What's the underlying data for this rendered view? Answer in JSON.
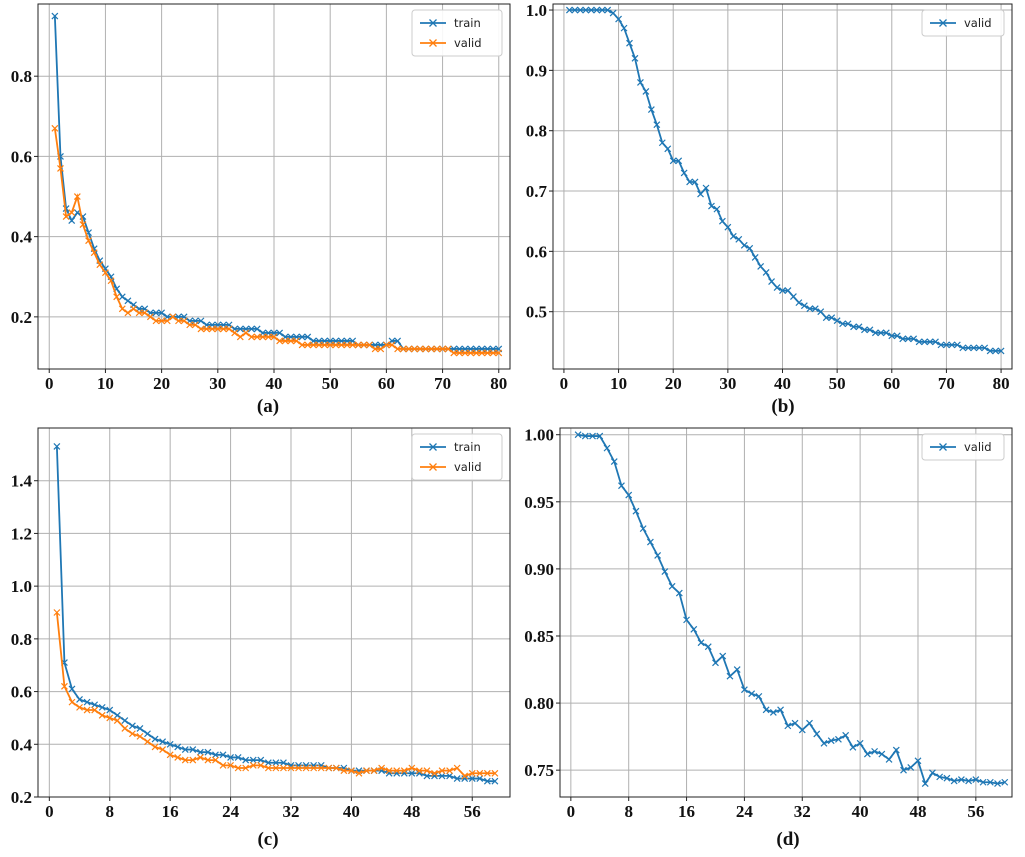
{
  "chart_data": [
    {
      "id": "a",
      "type": "line",
      "caption": "(a)",
      "xlim": [
        -2,
        82
      ],
      "ylim": [
        0.07,
        0.98
      ],
      "xticks": [
        0,
        10,
        20,
        30,
        40,
        50,
        60,
        70,
        80
      ],
      "yticks": [
        0.2,
        0.4,
        0.6,
        0.8
      ],
      "ytick_labels": [
        "0.2",
        "0.4",
        "0.6",
        "0.8"
      ],
      "grid": true,
      "legend": "top-right",
      "series": [
        {
          "name": "train",
          "color": "#1f77b4",
          "x_start": 1,
          "x_step": 1,
          "values": [
            0.95,
            0.6,
            0.47,
            0.44,
            0.46,
            0.45,
            0.41,
            0.37,
            0.34,
            0.32,
            0.3,
            0.27,
            0.25,
            0.24,
            0.23,
            0.22,
            0.22,
            0.21,
            0.21,
            0.21,
            0.2,
            0.2,
            0.2,
            0.2,
            0.19,
            0.19,
            0.19,
            0.18,
            0.18,
            0.18,
            0.18,
            0.18,
            0.17,
            0.17,
            0.17,
            0.17,
            0.17,
            0.16,
            0.16,
            0.16,
            0.16,
            0.15,
            0.15,
            0.15,
            0.15,
            0.15,
            0.14,
            0.14,
            0.14,
            0.14,
            0.14,
            0.14,
            0.14,
            0.14,
            0.13,
            0.13,
            0.13,
            0.13,
            0.13,
            0.13,
            0.14,
            0.14,
            0.12,
            0.12,
            0.12,
            0.12,
            0.12,
            0.12,
            0.12,
            0.12,
            0.12,
            0.12,
            0.12,
            0.12,
            0.12,
            0.12,
            0.12,
            0.12,
            0.12,
            0.12
          ]
        },
        {
          "name": "valid",
          "color": "#ff7f0e",
          "x_start": 1,
          "x_step": 1,
          "values": [
            0.67,
            0.57,
            0.45,
            0.46,
            0.5,
            0.43,
            0.39,
            0.36,
            0.33,
            0.31,
            0.29,
            0.25,
            0.22,
            0.21,
            0.22,
            0.21,
            0.21,
            0.2,
            0.19,
            0.19,
            0.19,
            0.2,
            0.19,
            0.19,
            0.18,
            0.18,
            0.17,
            0.17,
            0.17,
            0.17,
            0.17,
            0.17,
            0.16,
            0.15,
            0.16,
            0.15,
            0.15,
            0.15,
            0.15,
            0.15,
            0.14,
            0.14,
            0.14,
            0.14,
            0.13,
            0.13,
            0.13,
            0.13,
            0.13,
            0.13,
            0.13,
            0.13,
            0.13,
            0.13,
            0.13,
            0.13,
            0.13,
            0.12,
            0.12,
            0.13,
            0.13,
            0.12,
            0.12,
            0.12,
            0.12,
            0.12,
            0.12,
            0.12,
            0.12,
            0.12,
            0.12,
            0.11,
            0.11,
            0.11,
            0.11,
            0.11,
            0.11,
            0.11,
            0.11,
            0.11
          ]
        }
      ]
    },
    {
      "id": "b",
      "type": "line",
      "caption": "(b)",
      "xlim": [
        -2,
        82
      ],
      "ylim": [
        0.405,
        1.01
      ],
      "xticks": [
        0,
        10,
        20,
        30,
        40,
        50,
        60,
        70,
        80
      ],
      "yticks": [
        0.5,
        0.6,
        0.7,
        0.8,
        0.9,
        1.0
      ],
      "ytick_labels": [
        "0.5",
        "0.6",
        "0.7",
        "0.8",
        "0.9",
        "1.0"
      ],
      "grid": true,
      "legend": "top-right",
      "series": [
        {
          "name": "valid",
          "color": "#1f77b4",
          "x_start": 1,
          "x_step": 1,
          "values": [
            1.0,
            1.0,
            1.0,
            1.0,
            1.0,
            1.0,
            1.0,
            1.0,
            0.995,
            0.985,
            0.97,
            0.945,
            0.92,
            0.88,
            0.865,
            0.835,
            0.81,
            0.78,
            0.77,
            0.75,
            0.75,
            0.73,
            0.715,
            0.715,
            0.695,
            0.705,
            0.675,
            0.67,
            0.65,
            0.64,
            0.625,
            0.62,
            0.61,
            0.605,
            0.59,
            0.575,
            0.565,
            0.55,
            0.54,
            0.535,
            0.535,
            0.525,
            0.515,
            0.51,
            0.505,
            0.505,
            0.5,
            0.49,
            0.49,
            0.485,
            0.48,
            0.48,
            0.475,
            0.475,
            0.47,
            0.47,
            0.465,
            0.465,
            0.465,
            0.46,
            0.46,
            0.455,
            0.455,
            0.455,
            0.45,
            0.45,
            0.45,
            0.45,
            0.445,
            0.445,
            0.445,
            0.445,
            0.44,
            0.44,
            0.44,
            0.44,
            0.44,
            0.435,
            0.435,
            0.435
          ]
        }
      ]
    },
    {
      "id": "c",
      "type": "line",
      "caption": "(c)",
      "xlim": [
        -1.5,
        61
      ],
      "ylim": [
        0.2,
        1.6
      ],
      "xticks": [
        0,
        8,
        16,
        24,
        32,
        40,
        48,
        56
      ],
      "yticks": [
        0.2,
        0.4,
        0.6,
        0.8,
        1.0,
        1.2,
        1.4
      ],
      "ytick_labels": [
        "0.2",
        "0.4",
        "0.6",
        "0.8",
        "1.0",
        "1.2",
        "1.4"
      ],
      "grid": true,
      "legend": "top-right",
      "series": [
        {
          "name": "train",
          "color": "#1f77b4",
          "x_start": 1,
          "x_step": 1,
          "values": [
            1.53,
            0.71,
            0.61,
            0.57,
            0.56,
            0.55,
            0.54,
            0.53,
            0.51,
            0.49,
            0.47,
            0.46,
            0.44,
            0.42,
            0.41,
            0.4,
            0.39,
            0.38,
            0.38,
            0.37,
            0.37,
            0.36,
            0.36,
            0.35,
            0.35,
            0.34,
            0.34,
            0.34,
            0.33,
            0.33,
            0.33,
            0.32,
            0.32,
            0.32,
            0.32,
            0.32,
            0.31,
            0.31,
            0.31,
            0.3,
            0.3,
            0.3,
            0.3,
            0.3,
            0.29,
            0.29,
            0.29,
            0.29,
            0.29,
            0.28,
            0.28,
            0.28,
            0.28,
            0.27,
            0.27,
            0.27,
            0.27,
            0.26,
            0.26
          ]
        },
        {
          "name": "valid",
          "color": "#ff7f0e",
          "x_start": 1,
          "x_step": 1,
          "values": [
            0.9,
            0.62,
            0.56,
            0.54,
            0.53,
            0.53,
            0.51,
            0.5,
            0.49,
            0.46,
            0.44,
            0.43,
            0.41,
            0.39,
            0.38,
            0.36,
            0.35,
            0.34,
            0.34,
            0.35,
            0.34,
            0.34,
            0.32,
            0.32,
            0.31,
            0.31,
            0.32,
            0.32,
            0.31,
            0.31,
            0.31,
            0.31,
            0.31,
            0.31,
            0.31,
            0.31,
            0.31,
            0.31,
            0.3,
            0.3,
            0.29,
            0.3,
            0.3,
            0.31,
            0.3,
            0.3,
            0.3,
            0.31,
            0.3,
            0.3,
            0.29,
            0.3,
            0.3,
            0.31,
            0.28,
            0.29,
            0.29,
            0.29,
            0.29
          ]
        }
      ]
    },
    {
      "id": "d",
      "type": "line",
      "caption": "(d)",
      "xlim": [
        -1.5,
        61
      ],
      "ylim": [
        0.73,
        1.005
      ],
      "xticks": [
        0,
        8,
        16,
        24,
        32,
        40,
        48,
        56
      ],
      "yticks": [
        0.75,
        0.8,
        0.85,
        0.9,
        0.95,
        1.0
      ],
      "ytick_labels": [
        "0.75",
        "0.80",
        "0.85",
        "0.90",
        "0.95",
        "1.00"
      ],
      "grid": true,
      "legend": "top-right",
      "series": [
        {
          "name": "valid",
          "color": "#1f77b4",
          "x_start": 1,
          "x_step": 1,
          "values": [
            1.0,
            0.999,
            0.999,
            0.999,
            0.99,
            0.98,
            0.962,
            0.955,
            0.943,
            0.93,
            0.92,
            0.91,
            0.898,
            0.887,
            0.882,
            0.862,
            0.855,
            0.845,
            0.842,
            0.83,
            0.835,
            0.82,
            0.825,
            0.81,
            0.807,
            0.805,
            0.795,
            0.793,
            0.795,
            0.783,
            0.785,
            0.78,
            0.785,
            0.777,
            0.77,
            0.772,
            0.773,
            0.776,
            0.767,
            0.77,
            0.762,
            0.764,
            0.762,
            0.758,
            0.765,
            0.75,
            0.752,
            0.757,
            0.74,
            0.748,
            0.745,
            0.744,
            0.742,
            0.743,
            0.742,
            0.743,
            0.741,
            0.741,
            0.74,
            0.741
          ]
        }
      ]
    }
  ]
}
